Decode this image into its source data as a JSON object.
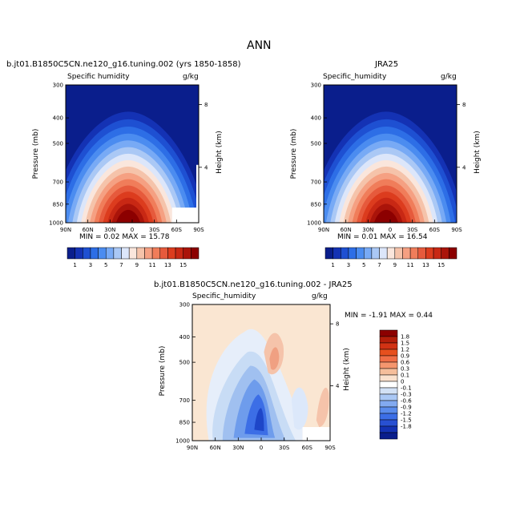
{
  "page": {
    "title": "ANN"
  },
  "panels": {
    "left": {
      "case_title": "b.jt01.B1850C5CN.ne120_g16.tuning.002 (yrs 1850-1858)",
      "var_label": "Specific humidity",
      "units": "g/kg",
      "min_max": "MIN =    0.02   MAX =    15.78"
    },
    "right": {
      "case_title": "JRA25",
      "var_label": "Specific_humidity",
      "units": "g/kg",
      "min_max": "MIN =    0.01   MAX =    16.54"
    },
    "diff": {
      "case_title": "b.jt01.B1850C5CN.ne120_g16.tuning.002 - JRA25",
      "var_label": "Specific_humidity",
      "units": "g/kg",
      "min_max": "MIN =   -1.91   MAX =    0.44"
    }
  },
  "axes": {
    "ylabel": "Pressure (mb)",
    "y2label": "Height (km)",
    "pressure_ticks": [
      "300",
      "400",
      "500",
      "700",
      "850",
      "1000"
    ],
    "height_ticks": [
      "8",
      "4"
    ],
    "lat_ticks": [
      "90N",
      "60N",
      "30N",
      "0",
      "30S",
      "60S",
      "90S"
    ]
  },
  "colorbar_top": {
    "labels": [
      "1",
      "3",
      "5",
      "7",
      "9",
      "11",
      "13",
      "15"
    ],
    "colors": [
      "#0a1e8c",
      "#1432b4",
      "#1e50d2",
      "#2d6ee6",
      "#4b8cf0",
      "#78aaf5",
      "#aac8f5",
      "#dce6fa",
      "#fae6dc",
      "#f5c3aa",
      "#f5a082",
      "#f07d5a",
      "#e65a3c",
      "#dc3c1e",
      "#c82814",
      "#aa140a",
      "#8c0000"
    ]
  },
  "colorbar_diff": {
    "labels": [
      "1.8",
      "1.5",
      "1.2",
      "0.9",
      "0.6",
      "0.3",
      "0.1",
      "0",
      "-0.1",
      "-0.3",
      "-0.6",
      "-0.9",
      "-1.2",
      "-1.5",
      "-1.8"
    ],
    "colors": [
      "#8c0000",
      "#b41e0a",
      "#d23214",
      "#e6501e",
      "#f06e46",
      "#f5966e",
      "#f5be9b",
      "#fae1cd",
      "#ffffff",
      "#d2e1f5",
      "#aac8f5",
      "#82aaf0",
      "#5a8cec",
      "#3c6ee6",
      "#2850d2",
      "#1432b4",
      "#0a1e8c"
    ]
  },
  "chart_data": [
    {
      "type": "heatmap",
      "title": "b.jt01.B1850C5CN.ne120_g16.tuning.002 (yrs 1850-1858)",
      "xlabel": "",
      "ylabel": "Pressure (mb)",
      "y2label": "Height (km)",
      "x_ticks": [
        "90N",
        "60N",
        "30N",
        "0",
        "30S",
        "60S",
        "90S"
      ],
      "y_ticks": [
        300,
        400,
        500,
        700,
        850,
        1000
      ],
      "ylim": [
        1000,
        300
      ],
      "min": 0.02,
      "max": 15.78
    },
    {
      "type": "heatmap",
      "title": "JRA25",
      "xlabel": "",
      "ylabel": "Pressure (mb)",
      "y2label": "Height (km)",
      "x_ticks": [
        "90N",
        "60N",
        "30N",
        "0",
        "30S",
        "60S",
        "90S"
      ],
      "y_ticks": [
        300,
        400,
        500,
        700,
        850,
        1000
      ],
      "ylim": [
        1000,
        300
      ],
      "min": 0.01,
      "max": 16.54
    },
    {
      "type": "heatmap",
      "title": "b.jt01.B1850C5CN.ne120_g16.tuning.002 - JRA25",
      "xlabel": "",
      "ylabel": "Pressure (mb)",
      "y2label": "Height (km)",
      "x_ticks": [
        "90N",
        "60N",
        "30N",
        "0",
        "30S",
        "60S",
        "90S"
      ],
      "y_ticks": [
        300,
        400,
        500,
        700,
        850,
        1000
      ],
      "ylim": [
        1000,
        300
      ],
      "min": -1.91,
      "max": 0.44
    }
  ]
}
